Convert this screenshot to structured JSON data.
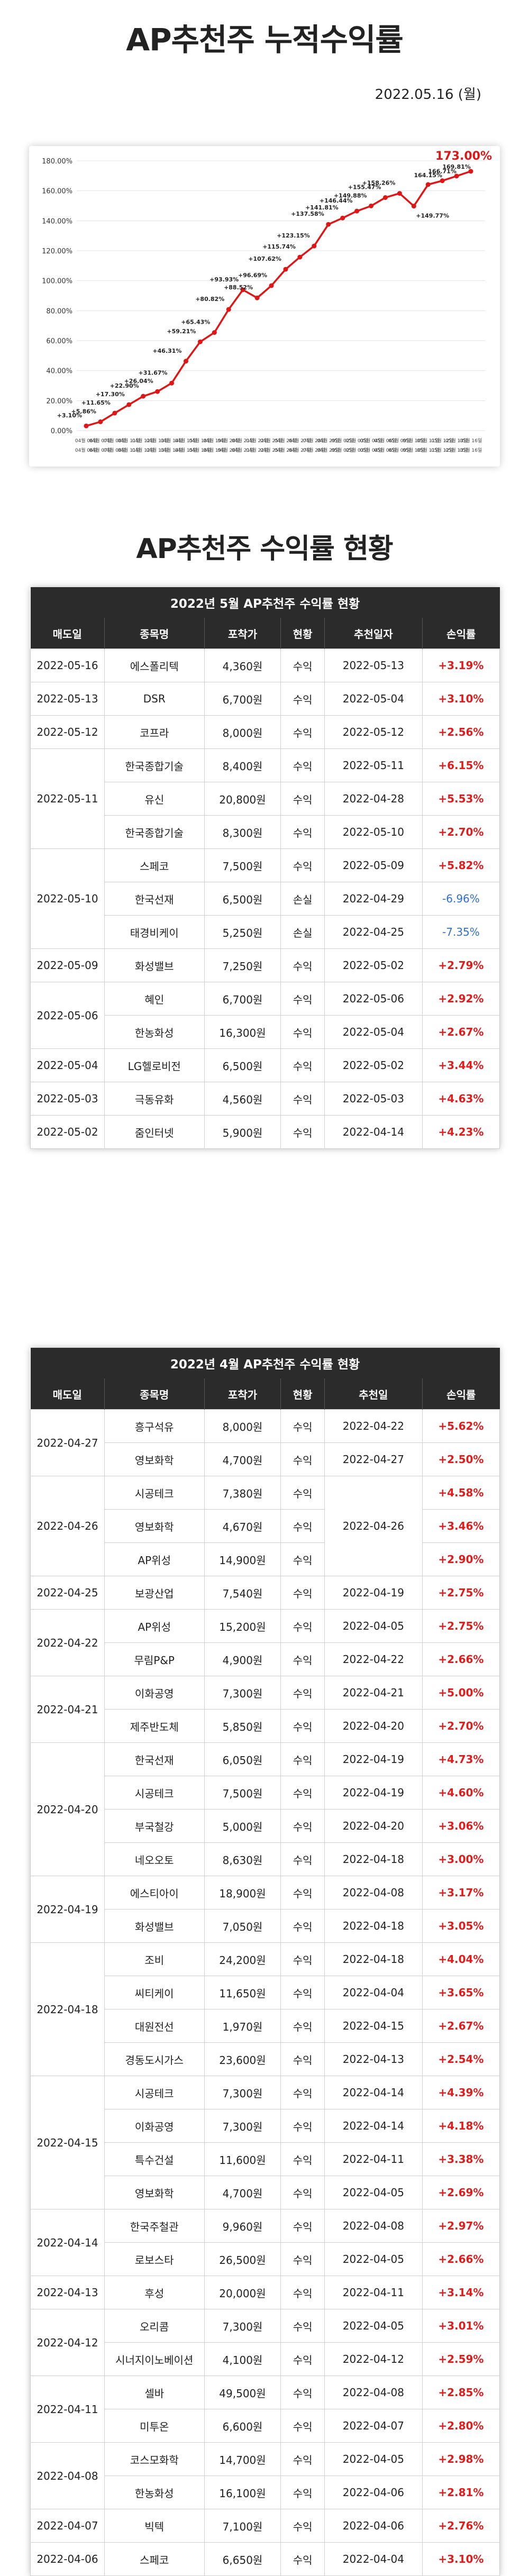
{
  "header": {
    "title": "AP추천주 누적수익률",
    "date": "2022.05.16 (월)"
  },
  "chart_data": {
    "type": "line",
    "color": "#e01616",
    "y_tick_labels": [
      "0.00%",
      "20.00%",
      "40.00%",
      "60.00%",
      "80.00%",
      "100.00%",
      "120.00%",
      "140.00%",
      "160.00%",
      "180.00%"
    ],
    "ylim": [
      0,
      180
    ],
    "x_top": [
      "04월 06일",
      "04월 07일",
      "04월 08일",
      "04월 11일",
      "04월 12일",
      "04월 13일",
      "04월 14일",
      "04월 15일",
      "04월 18일",
      "04월 19일",
      "04월 20일",
      "04월 21일",
      "04월 22일",
      "04월 25일",
      "04월 26일",
      "04월 27일",
      "04월 28일",
      "04월 29일",
      "05월 02일",
      "05월 03일",
      "05월 04일",
      "05월 06일",
      "05월 09일",
      "05월 10일",
      "05월 11일",
      "05월 12일",
      "05월 13일",
      "05월 16일"
    ],
    "x_labels": [
      "04월 06일",
      "04월 07일",
      "04월 08일",
      "04월 11일",
      "04월 12일",
      "04월 13일",
      "04월 14일",
      "04월 15일",
      "04월 18일",
      "04월 19일",
      "04월 20일",
      "04월 21일",
      "04월 22일",
      "04월 25일",
      "04월 26일",
      "04월 27일",
      "04월 28일",
      "04월 29일",
      "05월 02일",
      "05월 03일",
      "05월 04일",
      "05월 06일",
      "05월 09일",
      "05월 10일",
      "05월 11일",
      "05월 12일",
      "05월 13일",
      "05월 16일"
    ],
    "values": [
      3.1,
      5.86,
      11.65,
      17.3,
      22.9,
      26.04,
      31.67,
      46.31,
      59.21,
      65.43,
      80.82,
      93.93,
      88.52,
      96.69,
      107.62,
      115.74,
      123.15,
      137.58,
      141.81,
      146.44,
      149.88,
      155.47,
      158.26,
      149.77,
      164.15,
      166.71,
      169.81,
      173.0
    ],
    "point_labels": [
      "+3.10%",
      "+5.86%",
      "+11.65%",
      "+17.30%",
      "+22.90%",
      "+26.04%",
      "+31.67%",
      "+46.31%",
      "+59.21%",
      "+65.43%",
      "+80.82%",
      "+93.93%",
      "+88.52%",
      "+96.69%",
      "+107.62%",
      "+115.74%",
      "+123.15%",
      "+137.58%",
      "+141.81%",
      "+146.44%",
      "+149.88%",
      "+155.47%",
      "+158.26%",
      "+149.77%",
      "164.15%",
      "166.71%",
      "169.81%",
      "173.00%"
    ]
  },
  "section_title": "AP추천주 수익률 현황",
  "columns": [
    "매도일",
    "종목명",
    "포착가",
    "현황",
    "추천일자",
    "손익률"
  ],
  "columns_apr": [
    "매도일",
    "종목명",
    "포착가",
    "현황",
    "추천일",
    "손익률"
  ],
  "may": {
    "caption": "2022년 5월 AP추천주 수익률 현황",
    "groups": [
      {
        "date": "2022-05-16",
        "rows": [
          {
            "name": "에스폴리텍",
            "price": "4,360원",
            "status": "수익",
            "rec": "2022-05-13",
            "rate": "+3.19%",
            "dir": "pos"
          }
        ]
      },
      {
        "date": "2022-05-13",
        "rows": [
          {
            "name": "DSR",
            "price": "6,700원",
            "status": "수익",
            "rec": "2022-05-04",
            "rate": "+3.10%",
            "dir": "pos"
          }
        ]
      },
      {
        "date": "2022-05-12",
        "rows": [
          {
            "name": "코프라",
            "price": "8,000원",
            "status": "수익",
            "rec": "2022-05-12",
            "rate": "+2.56%",
            "dir": "pos"
          }
        ]
      },
      {
        "date": "2022-05-11",
        "rows": [
          {
            "name": "한국종합기술",
            "price": "8,400원",
            "status": "수익",
            "rec": "2022-05-11",
            "rate": "+6.15%",
            "dir": "pos"
          },
          {
            "name": "유신",
            "price": "20,800원",
            "status": "수익",
            "rec": "2022-04-28",
            "rate": "+5.53%",
            "dir": "pos"
          },
          {
            "name": "한국종합기술",
            "price": "8,300원",
            "status": "수익",
            "rec": "2022-05-10",
            "rate": "+2.70%",
            "dir": "pos"
          }
        ]
      },
      {
        "date": "2022-05-10",
        "rows": [
          {
            "name": "스페코",
            "price": "7,500원",
            "status": "수익",
            "rec": "2022-05-09",
            "rate": "+5.82%",
            "dir": "pos"
          },
          {
            "name": "한국선재",
            "price": "6,500원",
            "status": "손실",
            "rec": "2022-04-29",
            "rate": "-6.96%",
            "dir": "neg"
          },
          {
            "name": "태경비케이",
            "price": "5,250원",
            "status": "손실",
            "rec": "2022-04-25",
            "rate": "-7.35%",
            "dir": "neg"
          }
        ]
      },
      {
        "date": "2022-05-09",
        "rows": [
          {
            "name": "화성밸브",
            "price": "7,250원",
            "status": "수익",
            "rec": "2022-05-02",
            "rate": "+2.79%",
            "dir": "pos"
          }
        ]
      },
      {
        "date": "2022-05-06",
        "rows": [
          {
            "name": "혜인",
            "price": "6,700원",
            "status": "수익",
            "rec": "2022-05-06",
            "rate": "+2.92%",
            "dir": "pos"
          },
          {
            "name": "한농화성",
            "price": "16,300원",
            "status": "수익",
            "rec": "2022-05-04",
            "rate": "+2.67%",
            "dir": "pos"
          }
        ]
      },
      {
        "date": "2022-05-04",
        "rows": [
          {
            "name": "LG헬로비전",
            "price": "6,500원",
            "status": "수익",
            "rec": "2022-05-02",
            "rate": "+3.44%",
            "dir": "pos"
          }
        ]
      },
      {
        "date": "2022-05-03",
        "rows": [
          {
            "name": "극동유화",
            "price": "4,560원",
            "status": "수익",
            "rec": "2022-05-03",
            "rate": "+4.63%",
            "dir": "pos"
          }
        ]
      },
      {
        "date": "2022-05-02",
        "rows": [
          {
            "name": "줌인터넷",
            "price": "5,900원",
            "status": "수익",
            "rec": "2022-04-14",
            "rate": "+4.23%",
            "dir": "pos"
          }
        ]
      }
    ]
  },
  "apr": {
    "caption": "2022년 4월 AP추천주 수익률 현황",
    "groups": [
      {
        "date": "2022-04-27",
        "rows": [
          {
            "name": "흥구석유",
            "price": "8,000원",
            "status": "수익",
            "rec": "2022-04-22",
            "rate": "+5.62%",
            "dir": "pos"
          },
          {
            "name": "영보화학",
            "price": "4,700원",
            "status": "수익",
            "rec": "2022-04-27",
            "rate": "+2.50%",
            "dir": "pos"
          }
        ]
      },
      {
        "date": "2022-04-26",
        "rec_merged": "2022-04-26",
        "rows": [
          {
            "name": "시공테크",
            "price": "7,380원",
            "status": "수익",
            "rate": "+4.58%",
            "dir": "pos"
          },
          {
            "name": "영보화학",
            "price": "4,670원",
            "status": "수익",
            "rate": "+3.46%",
            "dir": "pos"
          },
          {
            "name": "AP위성",
            "price": "14,900원",
            "status": "수익",
            "rate": "+2.90%",
            "dir": "pos"
          }
        ]
      },
      {
        "date": "2022-04-25",
        "rows": [
          {
            "name": "보광산업",
            "price": "7,540원",
            "status": "수익",
            "rec": "2022-04-19",
            "rate": "+2.75%",
            "dir": "pos"
          }
        ]
      },
      {
        "date": "2022-04-22",
        "rows": [
          {
            "name": "AP위성",
            "price": "15,200원",
            "status": "수익",
            "rec": "2022-04-05",
            "rate": "+2.75%",
            "dir": "pos"
          },
          {
            "name": "무림P&P",
            "price": "4,900원",
            "status": "수익",
            "rec": "2022-04-22",
            "rate": "+2.66%",
            "dir": "pos"
          }
        ]
      },
      {
        "date": "2022-04-21",
        "rows": [
          {
            "name": "이화공영",
            "price": "7,300원",
            "status": "수익",
            "rec": "2022-04-21",
            "rate": "+5.00%",
            "dir": "pos"
          },
          {
            "name": "제주반도체",
            "price": "5,850원",
            "status": "수익",
            "rec": "2022-04-20",
            "rate": "+2.70%",
            "dir": "pos"
          }
        ]
      },
      {
        "date": "2022-04-20",
        "rows": [
          {
            "name": "한국선재",
            "price": "6,050원",
            "status": "수익",
            "rec": "2022-04-19",
            "rate": "+4.73%",
            "dir": "pos"
          },
          {
            "name": "시공테크",
            "price": "7,500원",
            "status": "수익",
            "rec": "2022-04-19",
            "rate": "+4.60%",
            "dir": "pos"
          },
          {
            "name": "부국철강",
            "price": "5,000원",
            "status": "수익",
            "rec": "2022-04-20",
            "rate": "+3.06%",
            "dir": "pos"
          },
          {
            "name": "네오오토",
            "price": "8,630원",
            "status": "수익",
            "rec": "2022-04-18",
            "rate": "+3.00%",
            "dir": "pos"
          }
        ]
      },
      {
        "date": "2022-04-19",
        "rows": [
          {
            "name": "에스티아이",
            "price": "18,900원",
            "status": "수익",
            "rec": "2022-04-08",
            "rate": "+3.17%",
            "dir": "pos"
          },
          {
            "name": "화성밸브",
            "price": "7,050원",
            "status": "수익",
            "rec": "2022-04-18",
            "rate": "+3.05%",
            "dir": "pos"
          }
        ]
      },
      {
        "date": "2022-04-18",
        "rows": [
          {
            "name": "조비",
            "price": "24,200원",
            "status": "수익",
            "rec": "2022-04-18",
            "rate": "+4.04%",
            "dir": "pos"
          },
          {
            "name": "씨티케이",
            "price": "11,650원",
            "status": "수익",
            "rec": "2022-04-04",
            "rate": "+3.65%",
            "dir": "pos"
          },
          {
            "name": "대원전선",
            "price": "1,970원",
            "status": "수익",
            "rec": "2022-04-15",
            "rate": "+2.67%",
            "dir": "pos"
          },
          {
            "name": "경동도시가스",
            "price": "23,600원",
            "status": "수익",
            "rec": "2022-04-13",
            "rate": "+2.54%",
            "dir": "pos"
          }
        ]
      },
      {
        "date": "2022-04-15",
        "rows": [
          {
            "name": "시공테크",
            "price": "7,300원",
            "status": "수익",
            "rec": "2022-04-14",
            "rate": "+4.39%",
            "dir": "pos"
          },
          {
            "name": "이화공영",
            "price": "7,300원",
            "status": "수익",
            "rec": "2022-04-14",
            "rate": "+4.18%",
            "dir": "pos"
          },
          {
            "name": "특수건설",
            "price": "11,600원",
            "status": "수익",
            "rec": "2022-04-11",
            "rate": "+3.38%",
            "dir": "pos"
          },
          {
            "name": "영보화학",
            "price": "4,700원",
            "status": "수익",
            "rec": "2022-04-05",
            "rate": "+2.69%",
            "dir": "pos"
          }
        ]
      },
      {
        "date": "2022-04-14",
        "rows": [
          {
            "name": "한국주철관",
            "price": "9,960원",
            "status": "수익",
            "rec": "2022-04-08",
            "rate": "+2.97%",
            "dir": "pos"
          },
          {
            "name": "로보스타",
            "price": "26,500원",
            "status": "수익",
            "rec": "2022-04-05",
            "rate": "+2.66%",
            "dir": "pos"
          }
        ]
      },
      {
        "date": "2022-04-13",
        "rows": [
          {
            "name": "후성",
            "price": "20,000원",
            "status": "수익",
            "rec": "2022-04-11",
            "rate": "+3.14%",
            "dir": "pos"
          }
        ]
      },
      {
        "date": "2022-04-12",
        "rows": [
          {
            "name": "오리콤",
            "price": "7,300원",
            "status": "수익",
            "rec": "2022-04-05",
            "rate": "+3.01%",
            "dir": "pos"
          },
          {
            "name": "시너지이노베이션",
            "price": "4,100원",
            "status": "수익",
            "rec": "2022-04-12",
            "rate": "+2.59%",
            "dir": "pos"
          }
        ]
      },
      {
        "date": "2022-04-11",
        "rows": [
          {
            "name": "셀바",
            "price": "49,500원",
            "status": "수익",
            "rec": "2022-04-08",
            "rate": "+2.85%",
            "dir": "pos"
          },
          {
            "name": "미투온",
            "price": "6,600원",
            "status": "수익",
            "rec": "2022-04-07",
            "rate": "+2.80%",
            "dir": "pos"
          }
        ]
      },
      {
        "date": "2022-04-08",
        "rows": [
          {
            "name": "코스모화학",
            "price": "14,700원",
            "status": "수익",
            "rec": "2022-04-05",
            "rate": "+2.98%",
            "dir": "pos"
          },
          {
            "name": "한농화성",
            "price": "16,100원",
            "status": "수익",
            "rec": "2022-04-06",
            "rate": "+2.81%",
            "dir": "pos"
          }
        ]
      },
      {
        "date": "2022-04-07",
        "rows": [
          {
            "name": "빅텍",
            "price": "7,100원",
            "status": "수익",
            "rec": "2022-04-06",
            "rate": "+2.76%",
            "dir": "pos"
          }
        ]
      },
      {
        "date": "2022-04-06",
        "rows": [
          {
            "name": "스페코",
            "price": "6,650원",
            "status": "수익",
            "rec": "2022-04-04",
            "rate": "+3.10%",
            "dir": "pos"
          }
        ]
      }
    ]
  }
}
